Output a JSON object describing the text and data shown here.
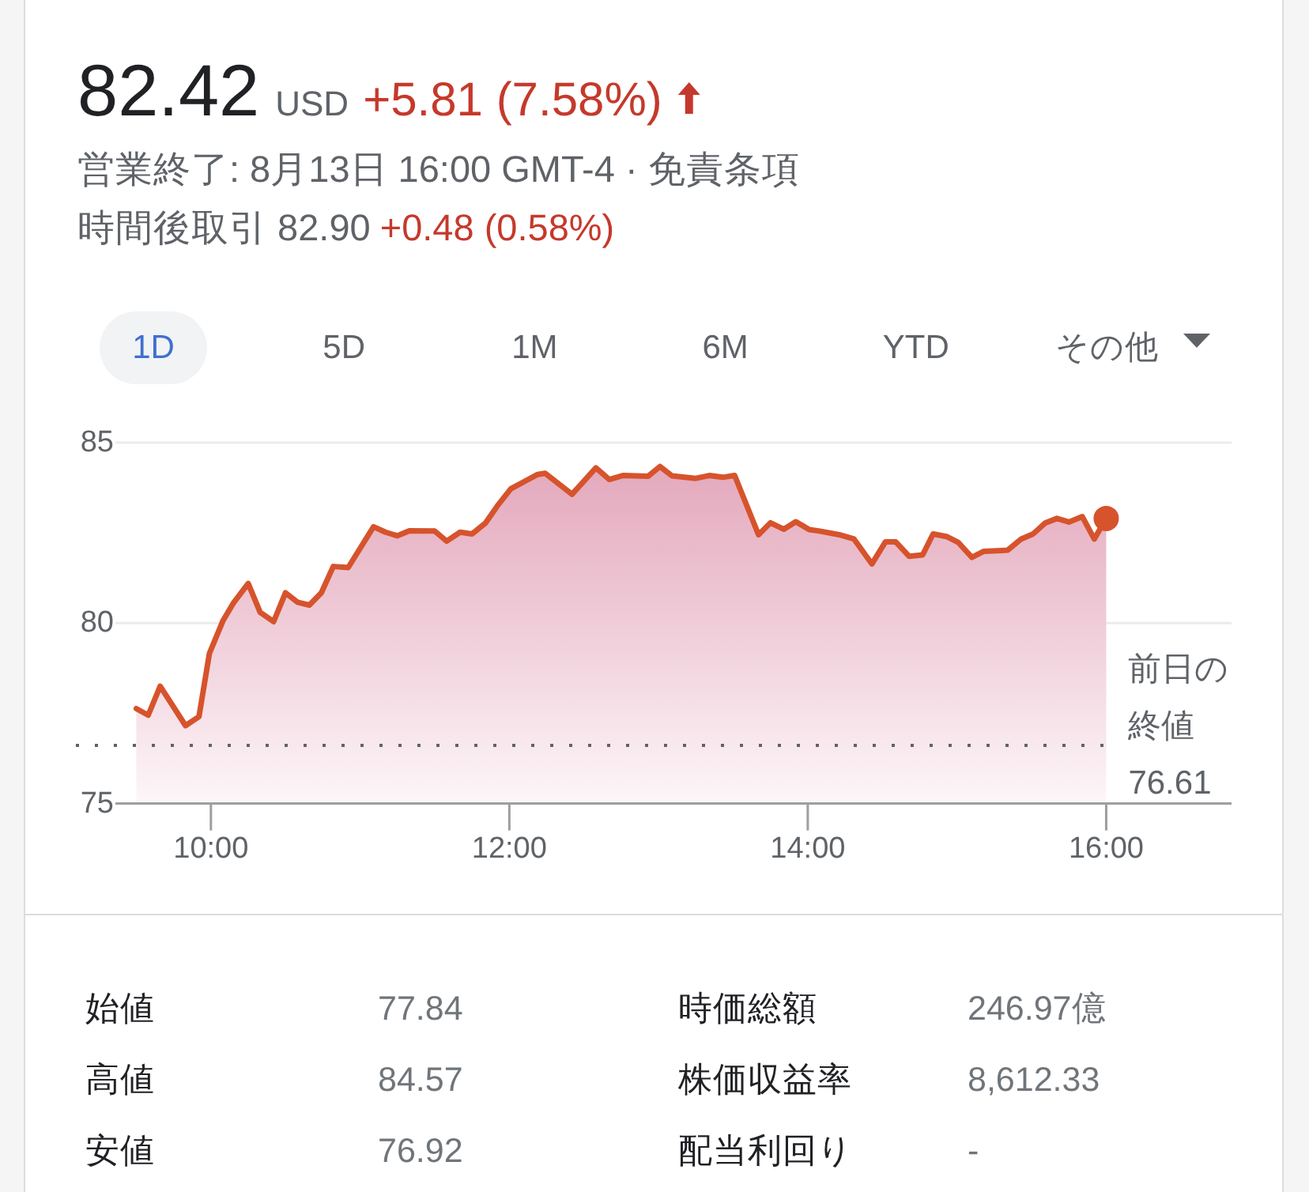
{
  "chart_data": [
    {
      "type": "other",
      "title": "82.42",
      "subtitle": "営業終了: 8月13日 16:00 GMT-4 · 免責条項",
      "annotations": [
        "USD",
        "+5.81 (7.58%)",
        "時間後取引 82.90",
        "+0.48 (0.58%)",
        "1D",
        "5D",
        "1M",
        "6M",
        "YTD",
        "その他"
      ]
    },
    {
      "type": "area",
      "series": [
        {
          "type": "area",
          "color": "#d6532c",
          "x": [
            9.5,
            9.58,
            9.66,
            9.83,
            9.92,
            9.99,
            10.08,
            10.15,
            10.25,
            10.33,
            10.42,
            10.5,
            10.58,
            10.66,
            10.74,
            10.82,
            10.92,
            11.09,
            11.17,
            11.25,
            11.33,
            11.5,
            11.58,
            11.67,
            11.75,
            11.84,
            11.92,
            12.01,
            12.09,
            12.19,
            12.24,
            12.42,
            12.58,
            12.67,
            12.76,
            12.93,
            13.01,
            13.09,
            13.25,
            13.34,
            13.43,
            13.51,
            13.67,
            13.75,
            13.84,
            13.92,
            14.01,
            14.08,
            14.21,
            14.31,
            14.43,
            14.52,
            14.59,
            14.68,
            14.77,
            14.84,
            14.93,
            15.01,
            15.1,
            15.18,
            15.34,
            15.43,
            15.51,
            15.59,
            15.67,
            15.75,
            15.84,
            15.92,
            16.0
          ],
          "values": [
            77.63,
            77.45,
            78.25,
            77.16,
            77.41,
            79.16,
            80.06,
            80.55,
            81.1,
            80.3,
            80.04,
            80.84,
            80.58,
            80.5,
            80.84,
            81.57,
            81.54,
            82.67,
            82.52,
            82.42,
            82.56,
            82.55,
            82.27,
            82.52,
            82.47,
            82.77,
            83.25,
            83.72,
            83.9,
            84.12,
            84.15,
            83.57,
            84.3,
            83.98,
            84.09,
            84.07,
            84.34,
            84.08,
            84.01,
            84.09,
            84.04,
            84.09,
            82.45,
            82.78,
            82.6,
            82.81,
            82.59,
            82.55,
            82.45,
            82.33,
            81.64,
            82.25,
            82.25,
            81.85,
            81.89,
            82.47,
            82.4,
            82.23,
            81.82,
            81.99,
            82.02,
            82.33,
            82.47,
            82.77,
            82.9,
            82.8,
            82.95,
            82.33,
            82.9
          ]
        },
        {
          "type": "scatter",
          "color": "#d6532c",
          "marker": "circle",
          "x": [
            16.0
          ],
          "values": [
            82.9
          ]
        }
      ],
      "xlim": [
        9.36,
        16.84
      ],
      "ylim": [
        75,
        85
      ],
      "xticks": [
        {
          "value": 10,
          "label": "10:00"
        },
        {
          "value": 12,
          "label": "12:00"
        },
        {
          "value": 14,
          "label": "14:00"
        },
        {
          "value": 16,
          "label": "16:00"
        }
      ],
      "yticks": [
        75,
        80,
        85
      ],
      "grid": "y",
      "ref_lines": [
        {
          "axis": "y",
          "value": 76.61,
          "label": "前日の終値 76.61",
          "line_style": "dotted",
          "color": "#5f6368"
        }
      ]
    },
    {
      "type": "other",
      "annotations": [
        "始値",
        "77.84",
        "時価総額",
        "246.97億",
        "高値",
        "84.57",
        "株価収益率",
        "8,612.33",
        "安値",
        "76.92",
        "配当利回り",
        "-"
      ]
    }
  ]
}
